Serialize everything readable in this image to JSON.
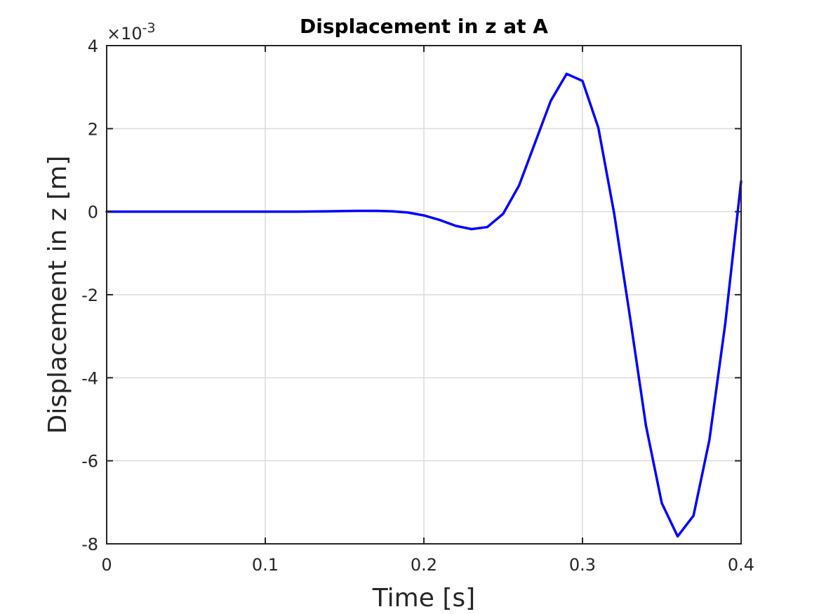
{
  "chart_data": {
    "type": "line",
    "title": "Displacement in z at A",
    "xlabel": "Time [s]",
    "ylabel": "Displacement in z [m]",
    "y_exponent_base": "×10",
    "y_exponent_power": "-3",
    "xlim": [
      0,
      0.4
    ],
    "ylim": [
      -8,
      4
    ],
    "xticks": [
      0,
      0.1,
      0.2,
      0.3,
      0.4
    ],
    "xtick_labels": [
      "0",
      "0.1",
      "0.2",
      "0.3",
      "0.4"
    ],
    "yticks": [
      4,
      2,
      0,
      -2,
      -4,
      -6,
      -8
    ],
    "ytick_labels": [
      "4",
      "2",
      "0",
      "-2",
      "-4",
      "-6",
      "-8"
    ],
    "grid": true,
    "line_color": "#0000ff",
    "series": [
      {
        "x": [
          0,
          0.01,
          0.02,
          0.03,
          0.04,
          0.05,
          0.06,
          0.07,
          0.08,
          0.09,
          0.1,
          0.11,
          0.12,
          0.13,
          0.14,
          0.15,
          0.16,
          0.17,
          0.18,
          0.19,
          0.2,
          0.21,
          0.22,
          0.23,
          0.24,
          0.25,
          0.26,
          0.27,
          0.28,
          0.29,
          0.3,
          0.31,
          0.32,
          0.33,
          0.34,
          0.35,
          0.36,
          0.37,
          0.38,
          0.39,
          0.4
        ],
        "y": [
          0,
          0,
          0,
          0,
          0,
          0,
          0,
          0,
          0,
          0,
          0,
          0,
          0,
          0.005,
          0.01,
          0.015,
          0.02,
          0.02,
          0.01,
          -0.02,
          -0.09,
          -0.2,
          -0.34,
          -0.42,
          -0.37,
          -0.05,
          0.63,
          1.65,
          2.67,
          3.32,
          3.15,
          2.02,
          -0.05,
          -2.55,
          -5.15,
          -7.02,
          -7.82,
          -7.32,
          -5.5,
          -2.7,
          0.73
        ]
      }
    ]
  }
}
